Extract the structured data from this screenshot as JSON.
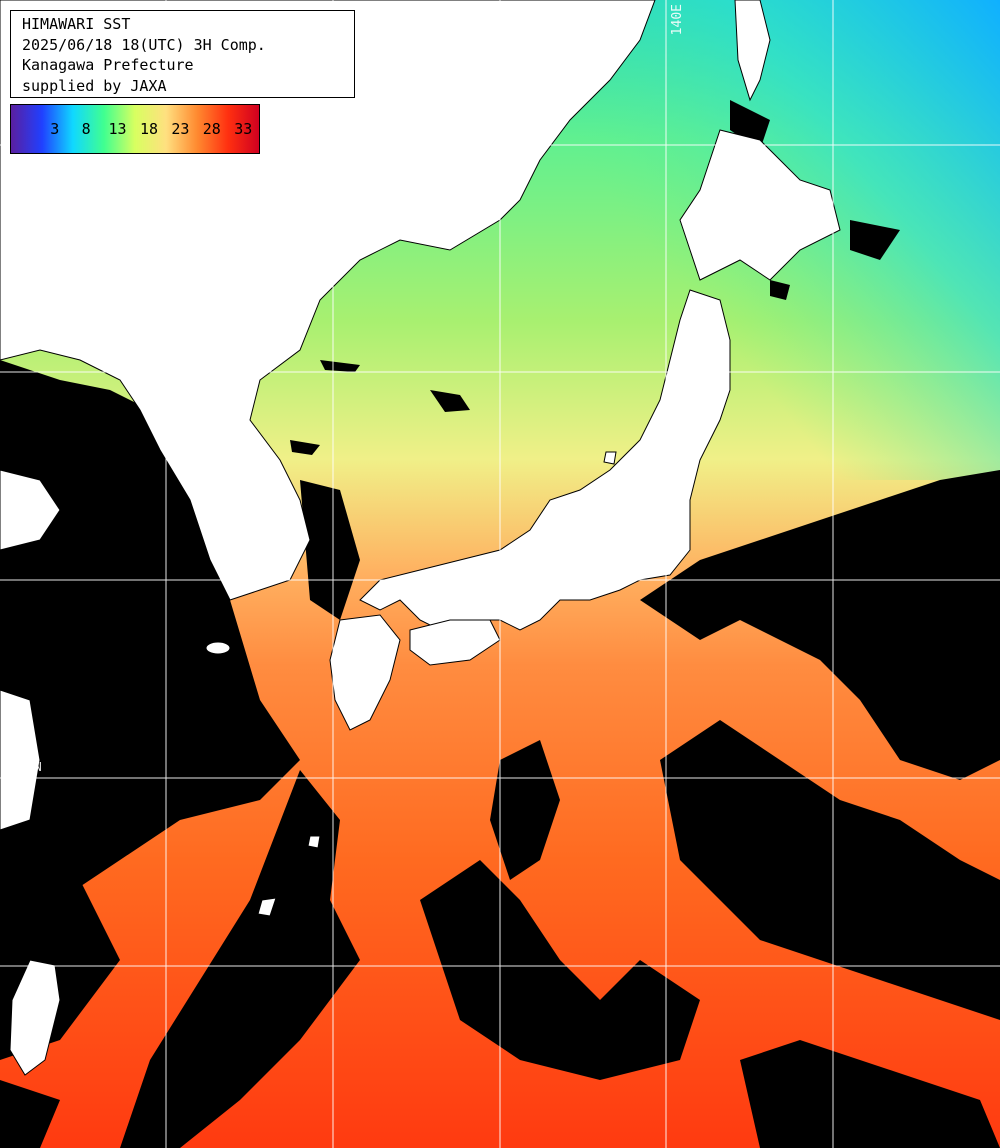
{
  "header": {
    "line1": "HIMAWARI SST",
    "line2": "2025/06/18 18(UTC) 3H Comp.",
    "line3": "Kanagawa Prefecture",
    "line4": "supplied by JAXA"
  },
  "legend": {
    "ticks": [
      "3",
      "8",
      "13",
      "18",
      "23",
      "28",
      "33"
    ],
    "colors": [
      "#5a1fa0",
      "#2040ff",
      "#10d8ff",
      "#40ff90",
      "#d8ff60",
      "#ffe080",
      "#ff8a30",
      "#ff3010",
      "#d00020"
    ]
  },
  "grid": {
    "lon_label": "140E",
    "lat_label": "30N"
  }
}
